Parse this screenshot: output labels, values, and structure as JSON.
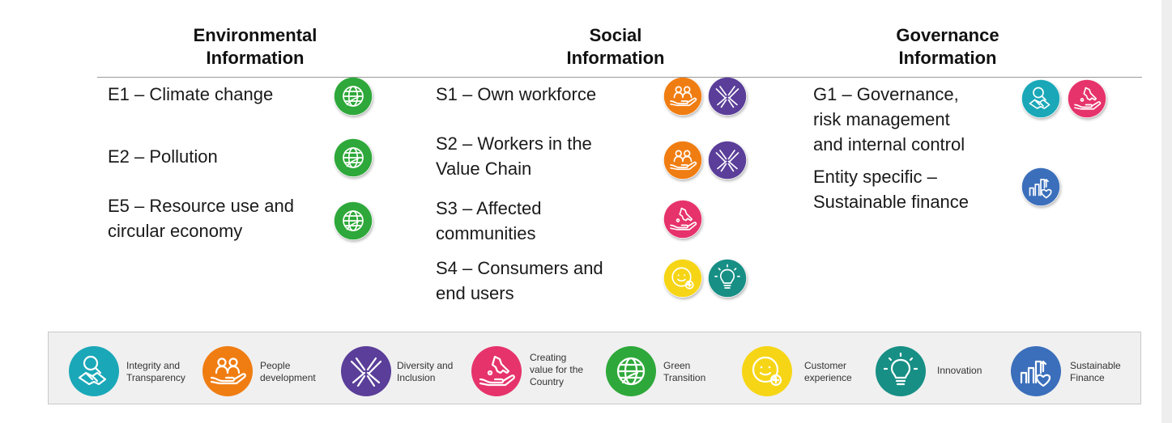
{
  "columns": {
    "environmental": {
      "line1": "Environmental",
      "line2": "Information"
    },
    "social": {
      "line1": "Social",
      "line2": "Information"
    },
    "governance": {
      "line1": "Governance",
      "line2": "Information"
    }
  },
  "environmental_topics": [
    {
      "lines": [
        "E1 – Climate change"
      ],
      "icons": [
        "globe-icon"
      ]
    },
    {
      "lines": [
        "E2 – Pollution"
      ],
      "icons": [
        "globe-icon"
      ]
    },
    {
      "lines": [
        "E5 – Resource use and",
        "circular economy"
      ],
      "icons": [
        "globe-icon"
      ]
    }
  ],
  "social_topics": [
    {
      "lines": [
        "S1 – Own workforce"
      ],
      "icons": [
        "people-icon",
        "hands-icon"
      ]
    },
    {
      "lines": [
        "S2 – Workers in the",
        "Value Chain"
      ],
      "icons": [
        "people-icon",
        "hands-icon"
      ]
    },
    {
      "lines": [
        "S3 – Affected",
        "communities"
      ],
      "icons": [
        "italy-hand-icon"
      ]
    },
    {
      "lines": [
        "S4 – Consumers and",
        "end users"
      ],
      "icons": [
        "smiley-icon",
        "lightbulb-icon"
      ]
    }
  ],
  "governance_topics": [
    {
      "lines": [
        "G1 – Governance,",
        "risk management",
        "and internal control"
      ],
      "icons": [
        "handshake-icon",
        "italy-hand-icon"
      ]
    },
    {
      "lines": [
        "Entity specific –",
        "Sustainable finance"
      ],
      "icons": [
        "finance-icon"
      ]
    }
  ],
  "legend": [
    {
      "lines": [
        "Integrity and",
        "Transparency"
      ],
      "icon": "handshake-icon",
      "color": "#1aa8b8"
    },
    {
      "lines": [
        "People",
        "development"
      ],
      "icon": "people-icon",
      "color": "#f07d12"
    },
    {
      "lines": [
        "Diversity and",
        "Inclusion"
      ],
      "icon": "hands-icon",
      "color": "#5a3e99"
    },
    {
      "lines": [
        "Creating",
        "value for the",
        "Country"
      ],
      "icon": "italy-hand-icon",
      "color": "#e6336b"
    },
    {
      "lines": [
        "Green",
        "Transition"
      ],
      "icon": "globe-icon",
      "color": "#2ea83a"
    },
    {
      "lines": [
        "Customer",
        "experience"
      ],
      "icon": "smiley-icon",
      "color": "#f6d516"
    },
    {
      "lines": [
        "Innovation"
      ],
      "icon": "lightbulb-icon",
      "color": "#178f85"
    },
    {
      "lines": [
        "Sustainable",
        "Finance"
      ],
      "icon": "finance-icon",
      "color": "#3b6fbb"
    }
  ],
  "colors": {
    "integrity": "#1aa8b8",
    "people": "#f07d12",
    "diversity": "#5a3e99",
    "country": "#e6336b",
    "green": "#2ea83a",
    "customer": "#f6d516",
    "innovation": "#178f85",
    "finance": "#3b6fbb"
  }
}
